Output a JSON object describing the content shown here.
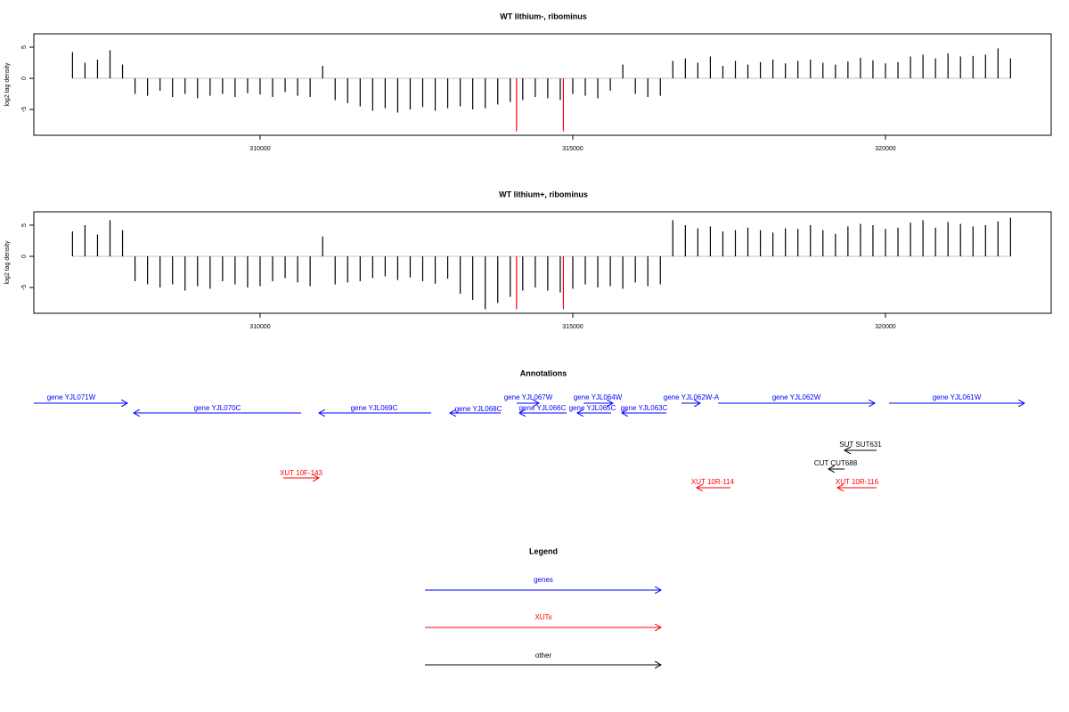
{
  "chart_data": [
    {
      "type": "bar",
      "title": "WT lithium-, ribominus",
      "y_label": "log2 tag density",
      "color": "#000000",
      "x": [
        307000,
        307200,
        307400,
        307600,
        307800,
        308000,
        308200,
        308400,
        308600,
        308800,
        309000,
        309200,
        309400,
        309600,
        309800,
        310000,
        310200,
        310400,
        310600,
        310800,
        311000,
        311200,
        311400,
        311600,
        311800,
        312000,
        312200,
        312400,
        312600,
        312800,
        313000,
        313200,
        313400,
        313600,
        313800,
        314000,
        314200,
        314400,
        314600,
        314800,
        315000,
        315200,
        315400,
        315600,
        315800,
        316000,
        316200,
        316400,
        316600,
        316800,
        317000,
        317200,
        317400,
        317600,
        317800,
        318000,
        318200,
        318400,
        318600,
        318800,
        319000,
        319200,
        319400,
        319600,
        319800,
        320000,
        320200,
        320400,
        320600,
        320800,
        321000,
        321200,
        321400,
        321600,
        321800,
        322000
      ],
      "values": [
        4.2,
        2.5,
        3.0,
        4.5,
        2.2,
        -2.5,
        -2.8,
        -2,
        -3,
        -2.5,
        -3.2,
        -2.8,
        -2.5,
        -3,
        -2.4,
        -2.6,
        -3,
        -2.2,
        -2.8,
        -3,
        2.0,
        -3.5,
        -4,
        -4.5,
        -5.2,
        -4.8,
        -5.5,
        -5,
        -4.6,
        -5.2,
        -4.8,
        -4.5,
        -5,
        -4.8,
        -4.2,
        -3.8,
        -3.5,
        -3,
        -3.2,
        -3.5,
        -2.5,
        -2.8,
        -3.2,
        -2,
        2.2,
        -2.5,
        -3,
        -2.8,
        2.8,
        3.2,
        2.5,
        3.5,
        2.0,
        2.8,
        2.2,
        2.6,
        3.0,
        2.4,
        2.8,
        3.0,
        2.5,
        2.2,
        2.7,
        3.3,
        2.9,
        2.4,
        2.6,
        3.5,
        3.8,
        3.2,
        4.0,
        3.5,
        3.6,
        3.8,
        4.8,
        3.2
      ],
      "highlights": {
        "color": "#ff0000",
        "x": [
          314100,
          314850
        ],
        "values": [
          -8.5,
          -8.5
        ]
      },
      "xlim": [
        306382,
        322650
      ],
      "ylim": [
        -9.14,
        7.14
      ],
      "xticks": [
        310000,
        315000,
        320000
      ],
      "yticks": [
        -5,
        0,
        5
      ]
    },
    {
      "type": "bar",
      "title": "WT lithium+, ribominus",
      "y_label": "log2 tag density",
      "color": "#000000",
      "x": [
        307000,
        307200,
        307400,
        307600,
        307800,
        308000,
        308200,
        308400,
        308600,
        308800,
        309000,
        309200,
        309400,
        309600,
        309800,
        310000,
        310200,
        310400,
        310600,
        310800,
        311000,
        311200,
        311400,
        311600,
        311800,
        312000,
        312200,
        312400,
        312600,
        312800,
        313000,
        313200,
        313400,
        313600,
        313800,
        314000,
        314200,
        314400,
        314600,
        314800,
        315000,
        315200,
        315400,
        315600,
        315800,
        316000,
        316200,
        316400,
        316600,
        316800,
        317000,
        317200,
        317400,
        317600,
        317800,
        318000,
        318200,
        318400,
        318600,
        318800,
        319000,
        319200,
        319400,
        319600,
        319800,
        320000,
        320200,
        320400,
        320600,
        320800,
        321000,
        321200,
        321400,
        321600,
        321800,
        322000
      ],
      "values": [
        4,
        5,
        3.5,
        5.8,
        4.2,
        -4,
        -4.5,
        -5,
        -4.5,
        -5.5,
        -4.8,
        -5.2,
        -4,
        -4.5,
        -5,
        -4.8,
        -4,
        -3.5,
        -4.2,
        -4.8,
        3.2,
        -4.5,
        -4.2,
        -4,
        -3.5,
        -3.2,
        -3.8,
        -3.4,
        -4.0,
        -4.4,
        -3.6,
        -6,
        -7,
        -8.5,
        -7.5,
        -6.5,
        -5.5,
        -5,
        -5.5,
        -5.8,
        -5.2,
        -4.5,
        -5,
        -4.8,
        -5.2,
        -4.2,
        -4.8,
        -4.5,
        5.8,
        5,
        4.5,
        4.8,
        4,
        4.2,
        4.6,
        4.2,
        3.8,
        4.5,
        4.4,
        5,
        4.2,
        3.6,
        4.8,
        5.2,
        5,
        4.4,
        4.6,
        5.4,
        5.8,
        4.6,
        5.5,
        5.2,
        4.8,
        5,
        5.6,
        6.2
      ],
      "highlights": {
        "color": "#ff0000",
        "x": [
          314100,
          314850
        ],
        "values": [
          -8.5,
          -8.5
        ]
      },
      "xlim": [
        306382,
        322650
      ],
      "ylim": [
        -9.14,
        7.14
      ],
      "xticks": [
        310000,
        315000,
        320000
      ],
      "yticks": [
        -5,
        0,
        5
      ]
    }
  ],
  "annotations": {
    "title": "Annotations",
    "items": [
      "gene YJL071W",
      "gene YJL070C",
      "gene YJL069C",
      "gene YJL068C",
      "gene YJL067W",
      "gene YJL066C",
      "gene YJL064W",
      "gene YJL065C",
      "gene YJL063C",
      "gene YJL062W-A",
      "gene YJL062W",
      "gene YJL061W",
      "SUT SUT631",
      "CUT CUT688",
      "XUT 10F-143",
      "XUT 10R-114",
      "XUT 10R-116"
    ]
  },
  "legend": {
    "title": "Legend",
    "items": [
      "genes",
      "XUTs",
      "other"
    ]
  }
}
